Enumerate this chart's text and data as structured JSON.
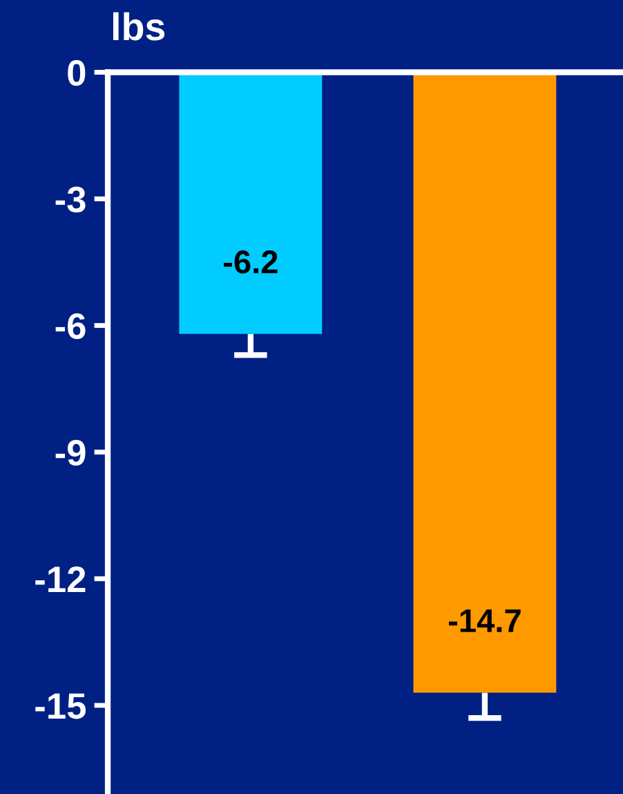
{
  "chart_data": {
    "type": "bar",
    "ylabel": "lbs",
    "categories": [
      null,
      null
    ],
    "values": [
      -6.2,
      -14.7
    ],
    "colors": [
      "#00ccff",
      "#ff9900"
    ],
    "errors": [
      [
        -6.7,
        -6.2
      ],
      [
        -15.3,
        -14.7
      ]
    ],
    "data_labels": true,
    "ylim": [
      -17.1,
      0
    ],
    "yticks": [
      0,
      -3,
      -6,
      -9,
      -12,
      -15
    ],
    "grid": false
  }
}
